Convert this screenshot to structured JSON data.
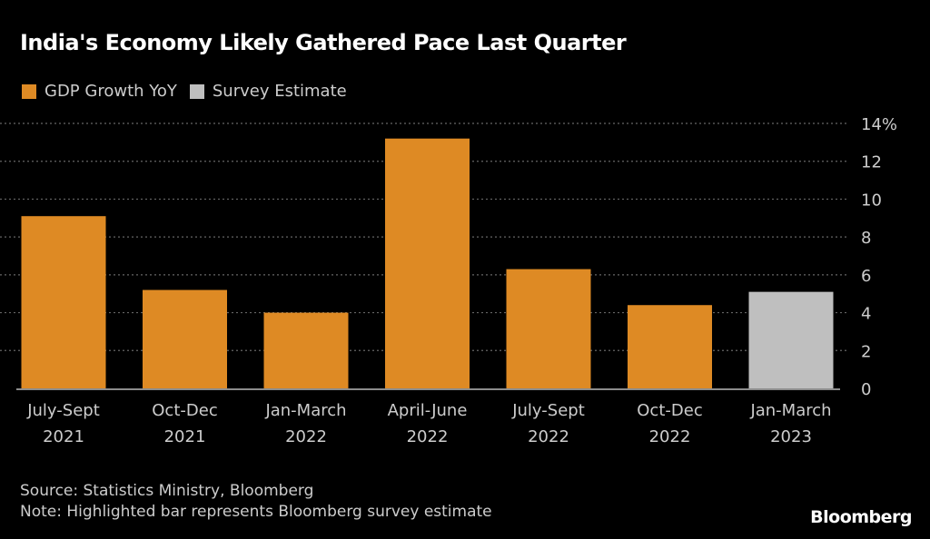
{
  "chart_data": {
    "type": "bar",
    "title": "India's Economy Likely Gathered Pace Last Quarter",
    "categories": [
      [
        "July-Sept",
        "2021"
      ],
      [
        "Oct-Dec",
        "2021"
      ],
      [
        "Jan-March",
        "2022"
      ],
      [
        "April-June",
        "2022"
      ],
      [
        "July-Sept",
        "2022"
      ],
      [
        "Oct-Dec",
        "2022"
      ],
      [
        "Jan-March",
        "2023"
      ]
    ],
    "series": [
      {
        "name": "GDP Growth YoY",
        "color": "#DE8A24",
        "values": [
          9.1,
          5.2,
          4.0,
          13.2,
          6.3,
          4.4,
          null
        ]
      },
      {
        "name": "Survey Estimate",
        "color": "#BFBFBF",
        "values": [
          null,
          null,
          null,
          null,
          null,
          null,
          5.1
        ]
      }
    ],
    "xlabel": "",
    "ylabel": "",
    "ylim": [
      0,
      14
    ],
    "yticks": [
      0,
      2,
      4,
      6,
      8,
      10,
      12,
      14
    ],
    "ytick_labels": [
      "0",
      "2",
      "4",
      "6",
      "8",
      "10",
      "12",
      "14%"
    ],
    "y_axis_side": "right",
    "grid": true,
    "legend_position": "top-left"
  },
  "legend": [
    {
      "label": "GDP Growth YoY",
      "color": "#DE8A24"
    },
    {
      "label": "Survey Estimate",
      "color": "#BFBFBF"
    }
  ],
  "footer": {
    "source": "Source: Statistics Ministry, Bloomberg",
    "note": "Note: Highlighted bar represents Bloomberg survey estimate",
    "brand": "Bloomberg"
  }
}
